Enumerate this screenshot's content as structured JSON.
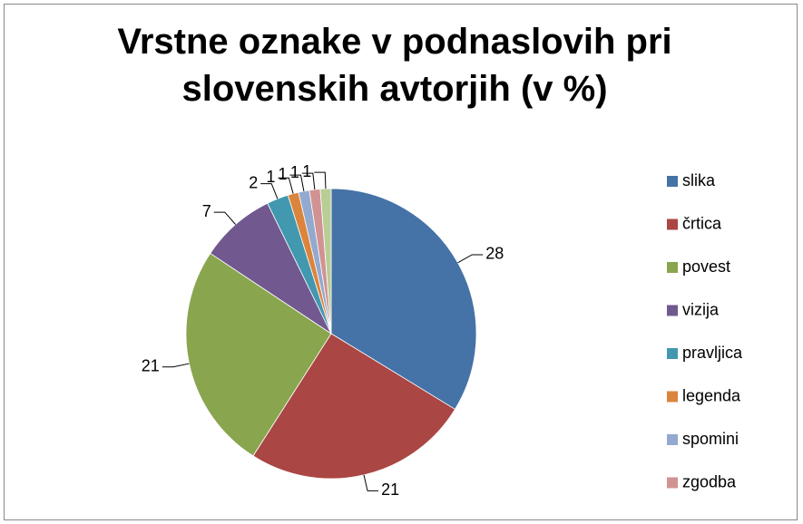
{
  "chart_data": {
    "type": "pie",
    "title": "Vrstne oznake v podnaslovih pri slovenskih avtorjih (v %)",
    "categories": [
      "slika",
      "črtica",
      "povest",
      "vizija",
      "pravljica",
      "legenda",
      "spomini",
      "zgodba",
      null
    ],
    "values": [
      28,
      21,
      21,
      7,
      2,
      1,
      1,
      1,
      1
    ],
    "colors": [
      "#4572a7",
      "#aa4643",
      "#89a54e",
      "#71588f",
      "#4198af",
      "#db843d",
      "#93a9cf",
      "#d19392",
      "#b9cd96"
    ],
    "legend": "right"
  }
}
